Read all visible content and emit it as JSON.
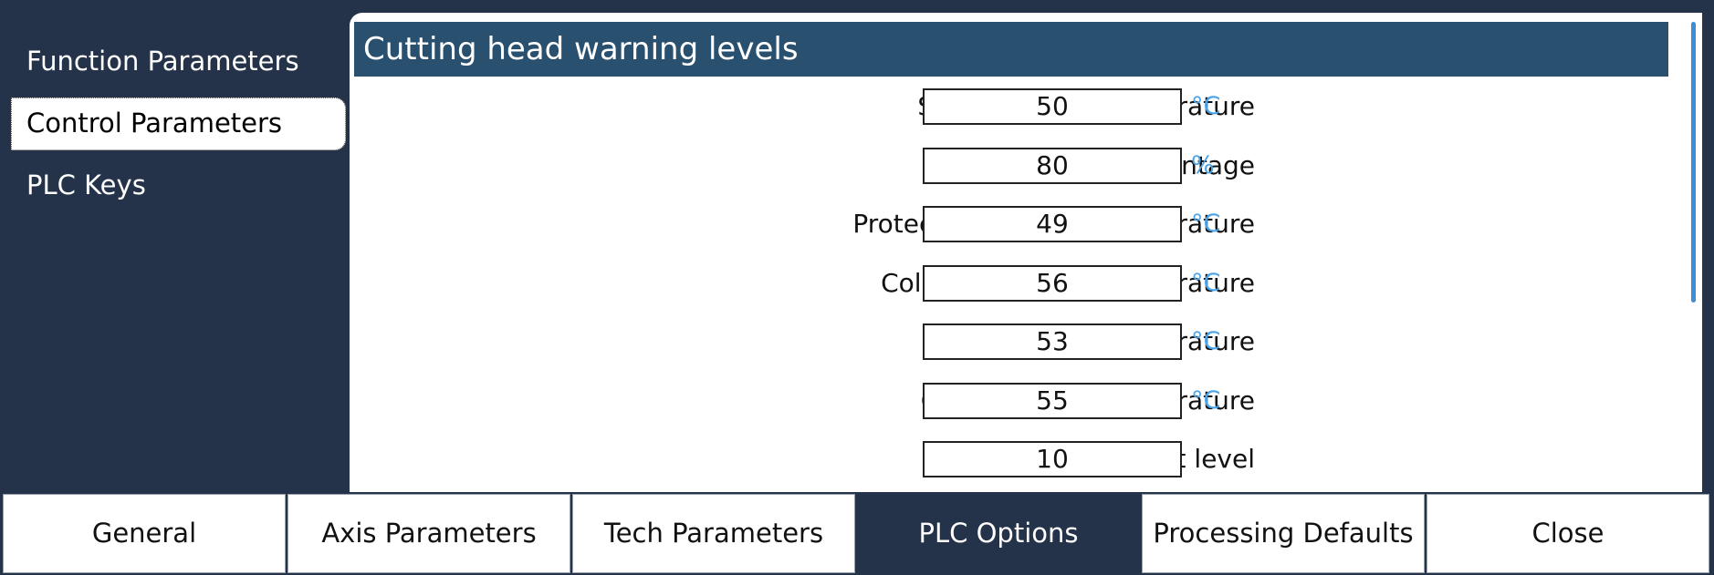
{
  "sidebar": {
    "items": [
      {
        "label": "Function Parameters"
      },
      {
        "label": "Control Parameters"
      },
      {
        "label": "PLC Keys"
      }
    ]
  },
  "panel": {
    "title": "Cutting head warning levels",
    "rows": [
      {
        "label": "Sensor insert temperature",
        "value": "50",
        "unit": "°C"
      },
      {
        "label": "Plasma value percentage",
        "value": "80",
        "unit": "%"
      },
      {
        "label": "Protective window temperature",
        "value": "49",
        "unit": "°C"
      },
      {
        "label": "Collimating lens temperature",
        "value": "56",
        "unit": "°C"
      },
      {
        "label": "Focal lens temperature",
        "value": "53",
        "unit": "°C"
      },
      {
        "label": "Cutting head temperature",
        "value": "55",
        "unit": "°C"
      },
      {
        "label": "Diffusion light level",
        "value": "10",
        "unit": ""
      }
    ]
  },
  "bottom_tabs": [
    {
      "label": "General"
    },
    {
      "label": "Axis Parameters"
    },
    {
      "label": "Tech Parameters"
    },
    {
      "label": "PLC Options"
    },
    {
      "label": "Processing Defaults"
    },
    {
      "label": "Close"
    }
  ],
  "colors": {
    "background": "#243349",
    "header": "#2a5070",
    "unit_accent": "#4aa3e8",
    "active_tab": "#243349"
  }
}
